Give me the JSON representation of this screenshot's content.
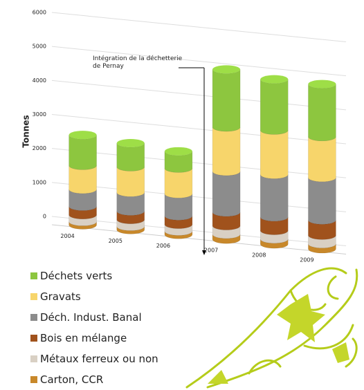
{
  "chart_data": {
    "type": "bar",
    "stacked": true,
    "y_label": "Tonnes",
    "annotation": "Intégration de la déchetterie de Pernay",
    "categories": [
      "2004",
      "2005",
      "2006",
      "2007",
      "2008",
      "2009"
    ],
    "ylim": [
      0,
      6000
    ],
    "yticks": [
      0,
      1000,
      2000,
      3000,
      4000,
      5000,
      6000
    ],
    "grid": true,
    "series": [
      {
        "name": "Carton, CCR",
        "color": "#c8882a",
        "values": [
          100,
          100,
          100,
          150,
          150,
          150
        ]
      },
      {
        "name": "Métaux ferreux ou non",
        "color": "#d9d0c4",
        "values": [
          200,
          200,
          200,
          250,
          250,
          250
        ]
      },
      {
        "name": "Bois en mélange",
        "color": "#a0521c",
        "values": [
          250,
          250,
          250,
          400,
          400,
          450
        ]
      },
      {
        "name": "Déch. Indust. Banal",
        "color": "#8c8c8c",
        "values": [
          500,
          550,
          650,
          1200,
          1250,
          1250
        ]
      },
      {
        "name": "Gravats",
        "color": "#f7d56b",
        "values": [
          700,
          750,
          750,
          1300,
          1300,
          1200
        ]
      },
      {
        "name": "Déchets verts",
        "color": "#8dc63f",
        "values": [
          900,
          700,
          500,
          1700,
          1500,
          1550
        ]
      }
    ]
  }
}
